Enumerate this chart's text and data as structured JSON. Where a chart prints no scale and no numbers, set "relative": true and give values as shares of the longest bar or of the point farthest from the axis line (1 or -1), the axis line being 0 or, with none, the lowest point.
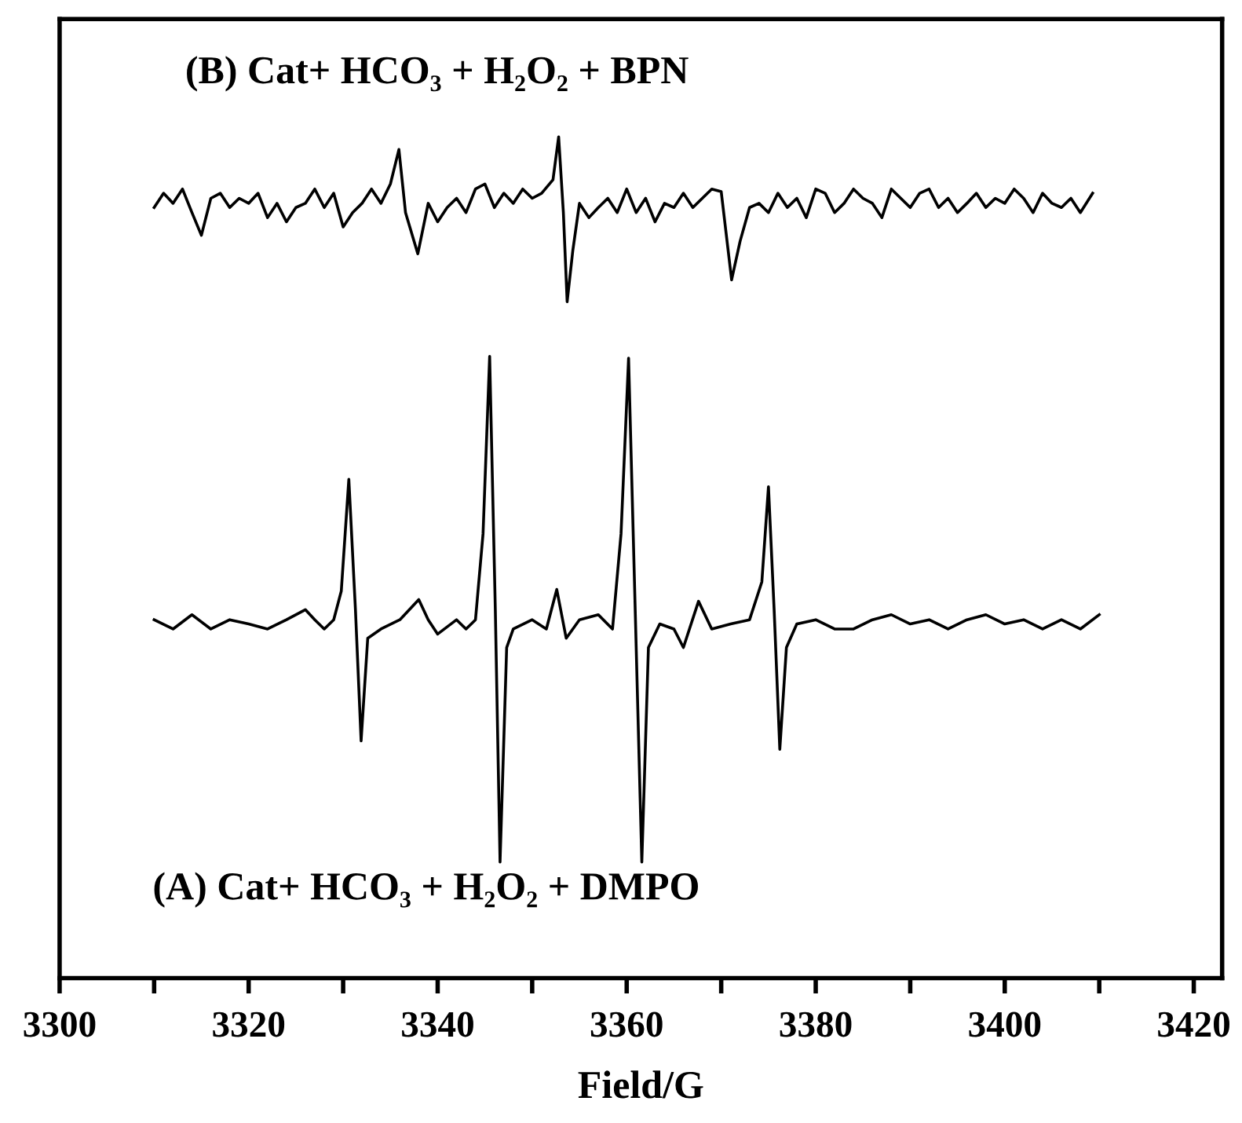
{
  "chart_data": {
    "type": "line",
    "relative": true,
    "xlabel": "Field/G",
    "xlim": [
      3300,
      3423
    ],
    "xticks": [
      3300,
      {
        "value": 3310,
        "label": null
      },
      3320,
      {
        "value": 3330,
        "label": null
      },
      3340,
      {
        "value": 3350,
        "label": null
      },
      3360,
      {
        "value": 3370,
        "label": null
      },
      3380,
      {
        "value": 3390,
        "label": null
      },
      3400,
      {
        "value": 3410,
        "label": null
      },
      3420
    ],
    "grid": false,
    "marker": "none",
    "line_style": "solid",
    "annotations": [
      "(B) Cat+ HCO₃ + H₂O₂ + BPN",
      "(A) Cat+ HCO₃ + H₂O₂ + DMPO"
    ],
    "series": [
      {
        "color": "#000000",
        "x": [
          3310,
          3312,
          3314,
          3316,
          3318,
          3320,
          3322,
          3324,
          3326,
          3327,
          3328,
          3329,
          3329.8,
          3330.6,
          3331.3,
          3331.9,
          3332.6,
          3334,
          3336,
          3338,
          3339,
          3340,
          3342,
          3343,
          3344,
          3344.8,
          3345.5,
          3346.1,
          3346.6,
          3347.3,
          3348,
          3350,
          3351.5,
          3352.6,
          3353.6,
          3355,
          3357,
          3358.5,
          3359.4,
          3360.2,
          3360.9,
          3361.6,
          3362.3,
          3363.5,
          3365,
          3366,
          3367.6,
          3369,
          3371,
          3373,
          3374.3,
          3375.0,
          3375.6,
          3376.2,
          3376.9,
          3378,
          3380,
          3382,
          3384,
          3386,
          3388,
          3390,
          3392,
          3394,
          3396,
          3398,
          3400,
          3402,
          3404,
          3406,
          3408,
          3410
        ],
        "values": [
          0.426,
          0.415,
          0.432,
          0.415,
          0.426,
          0.421,
          0.415,
          0.426,
          0.438,
          0.426,
          0.415,
          0.426,
          0.46,
          0.593,
          0.438,
          0.282,
          0.404,
          0.415,
          0.426,
          0.45,
          0.426,
          0.409,
          0.426,
          0.415,
          0.426,
          0.528,
          0.739,
          0.438,
          0.138,
          0.393,
          0.415,
          0.426,
          0.415,
          0.462,
          0.404,
          0.426,
          0.432,
          0.415,
          0.528,
          0.737,
          0.438,
          0.138,
          0.393,
          0.421,
          0.415,
          0.393,
          0.448,
          0.415,
          0.421,
          0.426,
          0.471,
          0.584,
          0.438,
          0.272,
          0.393,
          0.421,
          0.426,
          0.415,
          0.415,
          0.426,
          0.432,
          0.421,
          0.426,
          0.415,
          0.426,
          0.432,
          0.421,
          0.426,
          0.415,
          0.426,
          0.415,
          0.432
        ]
      },
      {
        "color": "#000000",
        "x": [
          3310,
          3311,
          3312,
          3313,
          3314,
          3315,
          3316,
          3317,
          3318,
          3319,
          3320,
          3321,
          3322,
          3323,
          3324,
          3325,
          3326,
          3327,
          3328,
          3329,
          3330,
          3331,
          3332,
          3333,
          3334,
          3335,
          3335.9,
          3336.6,
          3337.9,
          3339,
          3340,
          3341,
          3342,
          3343,
          3344,
          3345,
          3346,
          3347,
          3348,
          3349,
          3350,
          3351,
          3352.2,
          3352.8,
          3353.3,
          3353.7,
          3354.3,
          3355,
          3356,
          3357,
          3358,
          3359,
          3360,
          3361,
          3362,
          3363,
          3364,
          3365,
          3366,
          3367,
          3368,
          3369,
          3370,
          3371.1,
          3372,
          3373,
          3374,
          3375,
          3376,
          3377,
          3378,
          3379,
          3380,
          3381,
          3382,
          3383,
          3384,
          3385,
          3386,
          3387,
          3388,
          3389,
          3390,
          3391,
          3392,
          3393,
          3394,
          3395,
          3396,
          3397,
          3398,
          3399,
          3400,
          3401,
          3402,
          3403,
          3404,
          3405,
          3406,
          3407,
          3408,
          3409.3
        ],
        "values": [
          0.916,
          0.933,
          0.921,
          0.938,
          0.91,
          0.883,
          0.927,
          0.933,
          0.916,
          0.927,
          0.921,
          0.933,
          0.904,
          0.921,
          0.899,
          0.916,
          0.921,
          0.938,
          0.916,
          0.933,
          0.893,
          0.91,
          0.921,
          0.938,
          0.921,
          0.944,
          0.985,
          0.91,
          0.861,
          0.921,
          0.899,
          0.916,
          0.927,
          0.91,
          0.938,
          0.944,
          0.916,
          0.933,
          0.921,
          0.938,
          0.927,
          0.933,
          0.949,
          1.0,
          0.91,
          0.804,
          0.865,
          0.921,
          0.904,
          0.916,
          0.927,
          0.91,
          0.938,
          0.91,
          0.927,
          0.899,
          0.921,
          0.916,
          0.933,
          0.916,
          0.927,
          0.938,
          0.935,
          0.83,
          0.876,
          0.916,
          0.921,
          0.91,
          0.933,
          0.916,
          0.927,
          0.904,
          0.938,
          0.933,
          0.91,
          0.921,
          0.938,
          0.927,
          0.921,
          0.904,
          0.938,
          0.927,
          0.916,
          0.933,
          0.938,
          0.916,
          0.927,
          0.91,
          0.921,
          0.933,
          0.916,
          0.927,
          0.921,
          0.938,
          0.927,
          0.91,
          0.933,
          0.921,
          0.916,
          0.927,
          0.91,
          0.933
        ]
      }
    ]
  }
}
